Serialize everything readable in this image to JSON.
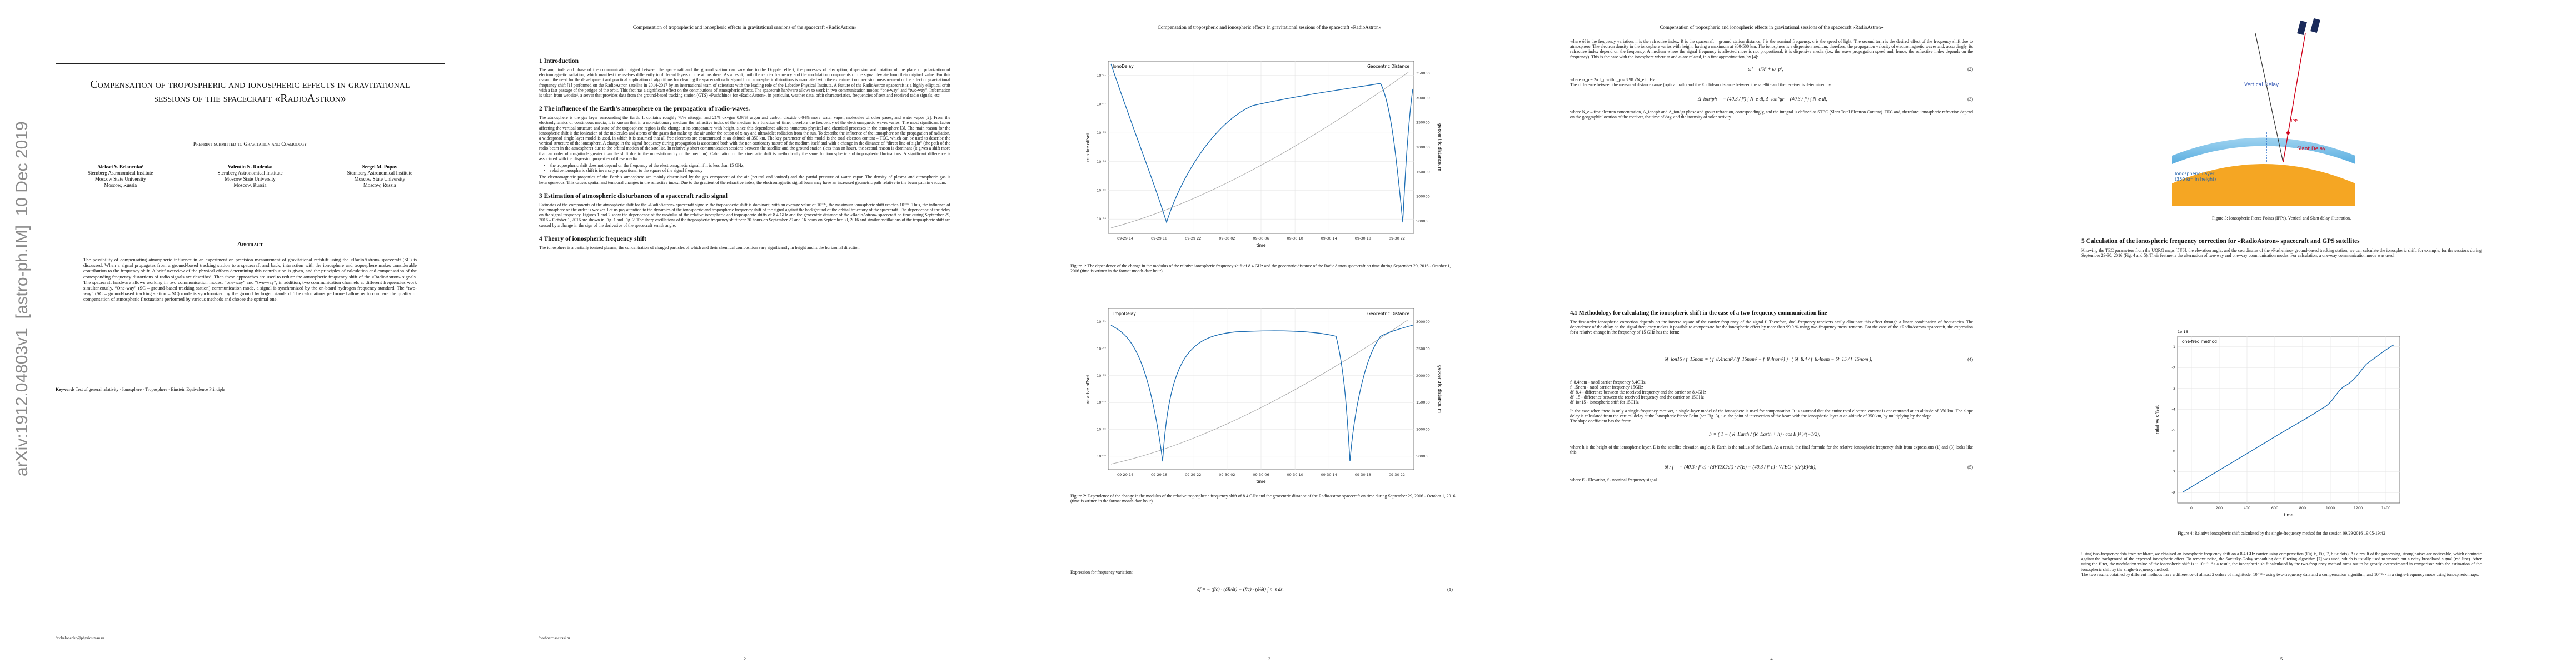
{
  "sidebar": "arXiv:1912.04803v1  [astro-ph.IM]  10 Dec 2019",
  "running_header": "Compensation of tropospheric and ionospheric effects in gravitational sessions of the spacecraft «RadioAstron»",
  "page1": {
    "title": "Compensation of tropospheric and ionospheric effects in gravitational sessions of the spacecraft «RadioAstron»",
    "subtitle": "Preprint submitted to Gravitation and Cosmology",
    "authors": [
      {
        "name": "Aleksei V. Belonenko¹",
        "lines": [
          "Sternberg Astronomical Institute",
          "Moscow State University",
          "Moscow, Russia"
        ]
      },
      {
        "name": "Valentin N. Rudenko",
        "lines": [
          "Sternberg Astronomical Institute",
          "Moscow State University",
          "Moscow, Russia"
        ]
      },
      {
        "name": "Sergei M. Popov",
        "lines": [
          "Sternberg Astronomical Institute",
          "Moscow State University",
          "Moscow, Russia"
        ]
      }
    ],
    "abstract_heading": "Abstract",
    "abstract": "The possibility of compensating atmospheric influence in an experiment on precision measurement of gravitational redshift using the «RadioAstron» spacecraft (SC) is discussed. When a signal propagates from a ground-based tracking station to a spacecraft and back, interaction with the ionosphere and troposphere makes considerable contribution to the frequency shift. A brief overview of the physical effects determining this contribution is given, and the principles of calculation and compensation of the corresponding frequency distortions of radio signals are described. Then these approaches are used to reduce the atmospheric frequency shift of the «RadioAstron» signals. The spacecraft hardware allows working in two communication modes: “one-way” and “two-way”, in addition, two communication channels at different frequencies work simultaneously. “One-way” (SC – ground-based tracking station) communication mode, a signal is synchronized by the on-board hydrogen frequency standard. The “two-way” (SC – ground-based tracking station – SC) mode is synchronized by the ground hydrogen standard. The calculations performed allow us to compare the quality of compensation of atmospheric fluctuations performed by various methods and choose the optimal one.",
    "keywords_label": "Keywords",
    "keywords": "Test of general relativity · Ionosphere · Troposphere · Einstein Equivalence Principle",
    "footnote": "¹av.belonenko@physics.msu.ru"
  },
  "page2": {
    "s1": "1   Introduction",
    "p1": "The amplitude and phase of the communication signal between the spacecraft and the ground station can vary due to the Doppler effect, the processes of absorption, dispersion and rotation of the plane of polarization of electromagnetic radiation, which manifest themselves differently in different layers of the atmosphere. As a result, both the carrier frequency and the modulation components of the signal deviate from their original value. For this reason, the need for the development and practical application of algorithms for cleaning the spacecraft radio signal from atmospheric distortions is associated with the experiment on precision measurement of the effect of gravitational frequency shift [1] performed on the RadioAstron satellite in 2014-2017 by an international team of scientists with the leading role of the Lebedev Physical Institute. A feature of the RadioAstron spacecraft is a highly elliptical orbit with a fast passage of the perigee of the orbit. This fact has a significant effect on the contributions of atmospheric effects. The spacecraft hardware allows to work in two communication modes: “one-way” and “two-way”. Information is taken from website¹, a server that provides data from the ground-based tracking station (GTS) «Pushchino» for «RadioAstron», in particular, weather data, orbit characteristics, frequencies of sent and received radio signals, etc.",
    "s2": "2   The influence of the Earth’s atmosphere on the propagation of radio-waves.",
    "p2": "The atmosphere is the gas layer surrounding the Earth. It contains roughly 78% nitrogen and 21% oxygen 0.97% argon and carbon dioxide 0.04% more water vapor, molecules of other gases, and water vapor [2]. From the electrodynamics of continuous media, it is known that in a non-stationary medium the refractive index of the medium is a function of time, therefore the frequency of the electromagnetic waves varies. The most significant factor affecting the vertical structure and state of the troposphere region is the change in its temperature with height, since this dependence affects numerous physical and chemical processes in the atmosphere [3]. The main reason for the ionospheric shift is the ionization of the molecules and atoms of the gases that make up the air under the action of x-ray and ultraviolet radiation from the sun. To describe the influence of the ionosphere on the propagation of radiation, a widespread single layer model is used, in which it is assumed that all free electrons are concentrated at an altitude of 350 km. The key parameter of this model is the total electron content – TEC, which can be used to describe the vertical structure of the ionosphere. A change in the signal frequency during propagation is associated both with the non-stationary nature of the medium itself and with a change in the distance of “direct line of sight” (the path of the radio beam in the atmosphere) due to the orbital motion of the satellite. In relatively short communication sessions between the satellite and the ground station (less than an hour), the second reason is dominant (it gives a shift more than an order of magnitude greater than the shift due to the non-stationarity of the medium). Calculation of the kinematic shift is methodically the same for ionospheric and tropospheric fluctuations. A significant difference is associated with the dispersion properties of these media:",
    "bullets": [
      "the tropospheric shift does not depend on the frequency of the electromagnetic signal, if it is less than 15 GHz;",
      "relative ionospheric shift is inversely proportional to the square of the signal frequency"
    ],
    "p3": "The electromagnetic properties of the Earth’s atmosphere are mainly determined by the gas component of the air (neutral and ionized) and the partial pressure of water vapor. The density of plasma and atmospheric gas is heterogeneous. This causes spatial and temporal changes in the refractive index. Due to the gradient of the refractive index, the electromagnetic signal beam may have an increased geometric path relative to the beam path in vacuum.",
    "s3": "3   Estimation of atmospheric disturbances of a spacecraft radio signal",
    "p4": "Estimates of the components of the atmospheric shift for the «RadioAstron» spacecraft signals: the tropospheric shift is dominant, with an average value of 10⁻¹³, the maximum ionospheric shift reaches 10⁻¹². Thus, the influence of the ionosphere on the order is weaker. Let us pay attention to the dynamics of the ionospheric and tropospheric frequency shift of the signal against the background of the orbital trajectory of the spacecraft. The dependence of the delay on the signal frequency. Figures 1 and 2 show the dependence of the modulus of the relative ionospheric and tropospheric shifts of 8.4 GHz and the geocentric distance of the «RadioAstron» spacecraft on time during September 29, 2016 – October 1, 2016 are shown in Fig. 1 and Fig. 2. The sharp oscillations of the tropospheric frequency shift near 20 hours on September 29 and 16 hours on September 30, 2016 and similar oscillations of the tropospheric shift are caused by a change in the sign of the derivative of the spacecraft zenith angle.",
    "s4": "4   Theory of ionospheric frequency shift",
    "p5": "The ionosphere is a partially ionized plasma, the concentration of charged particles of which and their chemical composition vary significantly in height and is the horizontal direction.",
    "footnote": "¹webbarc.asc.rssi.ru",
    "page_number": "2"
  },
  "page3": {
    "fig1": {
      "legend": "IonoDelay",
      "legend2": "Geocentric Distance",
      "ylabel": "relative offset",
      "y2label": "geocentric distance, m",
      "xlabel": "time",
      "yticks": [
        "10⁻¹¹",
        "10⁻¹²",
        "10⁻¹³",
        "10⁻¹⁴",
        "10⁻¹⁵",
        "10⁻¹⁶"
      ],
      "y2ticks": [
        "350000",
        "300000",
        "250000",
        "200000",
        "150000",
        "100000",
        "50000"
      ],
      "xticks": [
        "09-29 14",
        "09-29 18",
        "09-29 22",
        "09-30 02",
        "09-30 06",
        "09-30 10",
        "09-30 14",
        "09-30 18",
        "09-30 22"
      ]
    },
    "cap1": "Figure 1: The dependence of the change in the modulus of the relative ionospheric frequency shift of 8.4 GHz and the geocentric distance of the RadioAstron spacecraft on time during September 29, 2016 - October 1, 2016 (time is written in the format month-date hour)",
    "fig2": {
      "legend": "TropoDelay",
      "legend2": "Geocentric Distance",
      "ylabel": "relative offset",
      "y2label": "geocentric distance, m",
      "xlabel": "time",
      "yticks": [
        "10⁻¹¹",
        "10⁻¹²",
        "10⁻¹³",
        "10⁻¹⁴",
        "10⁻¹⁵",
        "10⁻¹⁶"
      ],
      "y2ticks": [
        "300000",
        "250000",
        "200000",
        "150000",
        "100000",
        "50000"
      ],
      "xticks": [
        "09-29 14",
        "09-29 18",
        "09-29 22",
        "09-30 02",
        "09-30 06",
        "09-30 10",
        "09-30 14",
        "09-30 18",
        "09-30 22"
      ]
    },
    "cap2": "Figure 2: Dependence of the change in the modulus of the relative tropospheric frequency shift of 8.4 GHz and the geocentric distance of the RadioAstron spacecraft on time during September 29, 2016 - October 1, 2016 (time is written in the format month-date hour)",
    "p1": "Expression for frequency variation:",
    "eq1": "δf = − (f/c) · (δR/δt) − (f/c) · (δ/δt) ∫ n_s ds.",
    "eq1_num": "(1)",
    "page_number": "3"
  },
  "page4": {
    "p1": "where δf is the frequency variation, n is the refractive index, R is the spacecraft – ground station distance, f is the nominal frequency, c is the speed of light. The second term is the desired effect of the frequency shift due to atmosphere. The electron density in the ionosphere varies with height, having a maximum at 300-500 km. The ionosphere is a dispersion medium, therefore, the propagation velocity of electromagnetic waves and, accordingly, its refractive index depend on the frequency. A medium where the signal frequency is affected more is not proportional, it is dispersive media (i.e., the wave propagation speed and, hence, the refractive index depends on the frequency). This is the case with the ionosphere where m and ω are related, in a first approximation, by [4]:",
    "eq2": "ω² = c²k² + ω_p²,",
    "eq2_num": "(2)",
    "p2": "where ω_p = 2π f_p with f_p ≈ 8.98 √N_e in Hz.",
    "p3": "The difference between the measured distance range (optical path) and the Euclidean distance between the satellite and the receiver is determined by:",
    "eq3": "Δ_ion^ph = − (40.3 / f²) ∫ N_e dl,     Δ_ion^gr = (40.3 / f²) ∫ N_e dl,",
    "eq3_num": "(3)",
    "p4": "where N_e – free electron concentration, Δ_ion^ph and Δ_ion^gr phase and group refraction, correspondingly, and the integral is defined as STEC (Slant Total Electron Content). TEC and, therefore, ionospheric refraction depend on the geographic location of the receiver, the time of day, and the intensity of solar activity.",
    "s41": "4.1   Methodology for calculating the ionospheric shift in the case of a two-frequency communication line",
    "p5": "The first-order ionospheric correction depends on the inverse square of the carrier frequency of the signal f. Therefore, dual-frequency receivers easily eliminate this effect through a linear combination of frequencies. The dependence of the delay on the signal frequency makes it possible to compensate for the ionospheric effect by more than 99.9 % using two-frequency measurements. For the case of the «RadioAstron» spacecraft, the expression for a relative change in the frequency of 15 GHz has the form:",
    "eq4": "δf_ion15 / f_15nom = ( f_8.4nom² / (f_15nom² − f_8.4nom²) ) · ( δf_8.4 / f_8.4nom − δf_15 / f_15nom ),",
    "eq4_num": "(4)",
    "defs": [
      "f_8.4nom - rated carrier frequency 8.4GHz",
      "f_15nom - rated carrier frequency 15GHz",
      "δf_8.4 - difference between the received frequency and the carrier on 8.4GHz",
      "δf_15 - difference between the received frequency and the carrier on 15GHz",
      "δf_ion15 - ionospheric shift for 15GHz"
    ],
    "p6": "In the case when there is only a single-frequency receiver, a single-layer model of the ionosphere is used for compensation. It is assumed that the entire total electron content is concentrated at an altitude of 350 km. The slope delay is calculated from the vertical delay at the Ionospheric Pierce Point (see Fig. 3), i.e. the point of intersection of the beam with the ionospheric layer at an altitude of 350 km, by multiplying by the slope.",
    "p7": "The slope coefficient has the form:",
    "eqF": "F = ( 1 − ( R_Earth / (R_Earth + h) · cos E )² )^(−1/2),",
    "p8": "where h is the height of the ionospheric layer, E is the satellite elevation angle, R_Earth is the radius of the Earth. As a result, the final formula for the relative ionospheric frequency shift from expressions (1) and (3) looks like this:",
    "eq5": "δf / f = − (40.3 / f² c) · (dVTEC/dt) · F(E) − (40.3 / f² c) · VTEC · (dF(E)/dt),",
    "eq5_num": "(5)",
    "p9": "where E - Elevation, f - nominal frequency signal",
    "page_number": "4"
  },
  "page5": {
    "fig3_labels": [
      "Vertical Delay",
      "IPP",
      "Slant Delay",
      "Ionospheric Layer",
      "(350 km in height)"
    ],
    "cap3": "Figure 3: Ionospheric Pierce Points (IPPs), Vertical and Slant delay illustration.",
    "s5": "5   Calculation of the ionospheric frequency correction for «RadioAstron» spacecraft and GPS satellites",
    "p1": "Knowing the TEC parameters from the UQRG maps [5][6], the elevation angle, and the coordinates of the «Pushchino» ground-based tracking station, we can calculate the ionospheric shift, for example, for the sessions during September 29-30, 2016 (Fig. 4 and 5). Their feature is the alternation of two-way and one-way communication modes. For calculation, a one-way communication mode was used.",
    "fig4": {
      "legend": "one-freq method",
      "ylabel": "relative offset",
      "xlabel": "time",
      "scale": "1e-16",
      "yticks": [
        "-1",
        "-2",
        "-3",
        "-4",
        "-5",
        "-6",
        "-7",
        "-8"
      ],
      "xticks": [
        "0",
        "200",
        "400",
        "600",
        "800",
        "1000",
        "1200",
        "1400"
      ]
    },
    "cap4": "Figure 4: Relative ionospheric shift calculated by the single-frequency method for the session 09/29/2016 19:05-19:42",
    "p2": "Using two-frequency data from webbarc, we obtained an ionospheric frequency shift on a 8.4 GHz carrier using compensation (Fig. 6, Fig. 7, blue dots). As a result of the processing, strong noises are noticeable, which dominate against the background of the expected ionospheric effect. To remove noise, the Savitzky-Golay smoothing data filtering algorithm [7] was used, which is usually used to smooth out a noisy broadband signal (red line). After using the filter, the modulation value of the ionospheric shift is ~ 10⁻¹³. As a result, the ionospheric shift calculated by the two-frequency method turns out to be greatly overestimated in comparison with the estimation of the ionospheric shift by the single-frequency method.",
    "p3": "The two results obtained by different methods have a difference of almost 2 orders of magnitude: 10⁻¹³ - using two-frequency data and a compensation algorithm, and 10⁻¹⁵ - in a single-frequency mode using ionospheric maps.",
    "page_number": "5"
  }
}
